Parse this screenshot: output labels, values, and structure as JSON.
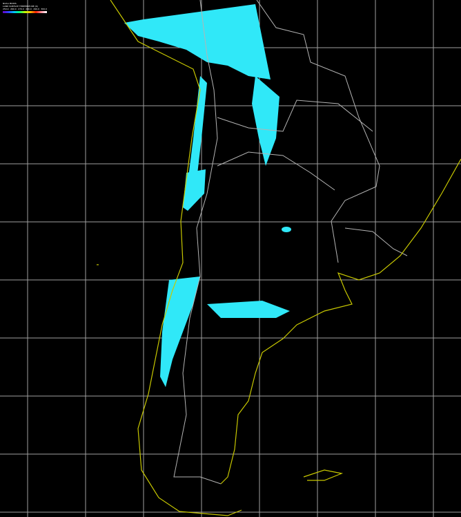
{
  "legend": {
    "title": "NOAA MODIS",
    "subtitle": "LAND SURFACE TEMPERATURE (K)",
    "ticks": [
      "250.0",
      "260.0",
      "270.0",
      "280.0",
      "290.0",
      "300.0"
    ],
    "colors": [
      "#6a00c8",
      "#3040ff",
      "#00c0ff",
      "#00ff80",
      "#c0ff00",
      "#ffc000",
      "#ff2000",
      "#ff90a0",
      "#ffffff"
    ]
  },
  "map": {
    "region": "southern South America",
    "background": "#000000",
    "grid_color": "#c8c8c8",
    "coastline_color": "#c8c800",
    "border_color": "#b4b4b4",
    "data_color": "#30e8f8"
  }
}
